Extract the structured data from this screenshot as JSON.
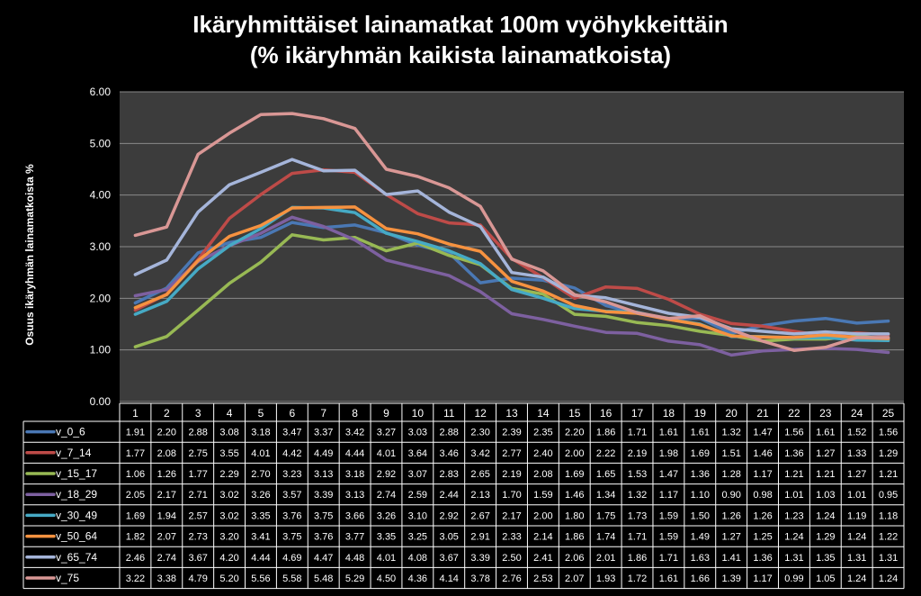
{
  "chart_data": {
    "type": "line",
    "title_lines": [
      "Ikäryhmittäiset lainamatkat 100m vyöhykkeittäin",
      "(% ikäryhmän kaikista lainamatkoista)"
    ],
    "ylabel": "Osuus ikäryhmän lainamatkoista  %",
    "ylim": [
      0,
      6
    ],
    "yticks": [
      "0.00",
      "1.00",
      "2.00",
      "3.00",
      "4.00",
      "5.00",
      "6.00"
    ],
    "grid": true,
    "legend": "data-table",
    "x": [
      "1",
      "2",
      "3",
      "4",
      "5",
      "6",
      "7",
      "8",
      "9",
      "10",
      "11",
      "12",
      "13",
      "14",
      "15",
      "16",
      "17",
      "18",
      "19",
      "20",
      "21",
      "22",
      "23",
      "24",
      "25"
    ],
    "series": [
      {
        "name": "v_0_6",
        "color": "#4a78b4",
        "values": [
          1.91,
          2.2,
          2.88,
          3.08,
          3.18,
          3.47,
          3.37,
          3.42,
          3.27,
          3.03,
          2.88,
          2.3,
          2.39,
          2.35,
          2.2,
          1.86,
          1.71,
          1.61,
          1.61,
          1.32,
          1.47,
          1.56,
          1.61,
          1.52,
          1.56
        ]
      },
      {
        "name": "v_7_14",
        "color": "#be4b48",
        "values": [
          1.77,
          2.08,
          2.75,
          3.55,
          4.01,
          4.42,
          4.49,
          4.44,
          4.01,
          3.64,
          3.46,
          3.42,
          2.77,
          2.4,
          2.0,
          2.22,
          2.19,
          1.98,
          1.69,
          1.51,
          1.46,
          1.36,
          1.27,
          1.33,
          1.29
        ]
      },
      {
        "name": "v_15_17",
        "color": "#98b954",
        "values": [
          1.06,
          1.26,
          1.77,
          2.29,
          2.7,
          3.23,
          3.13,
          3.18,
          2.92,
          3.07,
          2.83,
          2.65,
          2.19,
          2.08,
          1.69,
          1.65,
          1.53,
          1.47,
          1.36,
          1.28,
          1.17,
          1.21,
          1.21,
          1.27,
          1.21
        ]
      },
      {
        "name": "v_18_29",
        "color": "#7d60a0",
        "values": [
          2.05,
          2.17,
          2.71,
          3.02,
          3.26,
          3.57,
          3.39,
          3.13,
          2.74,
          2.59,
          2.44,
          2.13,
          1.7,
          1.59,
          1.46,
          1.34,
          1.32,
          1.17,
          1.1,
          0.9,
          0.98,
          1.01,
          1.03,
          1.01,
          0.95
        ]
      },
      {
        "name": "v_30_49",
        "color": "#46aac5",
        "values": [
          1.69,
          1.94,
          2.57,
          3.02,
          3.35,
          3.76,
          3.75,
          3.66,
          3.26,
          3.1,
          2.92,
          2.67,
          2.17,
          2.0,
          1.8,
          1.75,
          1.73,
          1.59,
          1.5,
          1.26,
          1.26,
          1.23,
          1.24,
          1.19,
          1.18
        ]
      },
      {
        "name": "v_50_64",
        "color": "#f69240",
        "values": [
          1.82,
          2.07,
          2.73,
          3.2,
          3.41,
          3.75,
          3.76,
          3.77,
          3.35,
          3.25,
          3.05,
          2.91,
          2.33,
          2.14,
          1.86,
          1.74,
          1.71,
          1.59,
          1.49,
          1.27,
          1.25,
          1.24,
          1.29,
          1.24,
          1.22
        ]
      },
      {
        "name": "v_65_74",
        "color": "#a5b5da",
        "values": [
          2.46,
          2.74,
          3.67,
          4.2,
          4.44,
          4.69,
          4.47,
          4.48,
          4.01,
          4.08,
          3.67,
          3.39,
          2.5,
          2.41,
          2.06,
          2.01,
          1.86,
          1.71,
          1.63,
          1.41,
          1.36,
          1.31,
          1.35,
          1.31,
          1.31
        ]
      },
      {
        "name": "v_75",
        "color": "#d99795",
        "values": [
          3.22,
          3.38,
          4.79,
          5.2,
          5.56,
          5.58,
          5.48,
          5.29,
          4.5,
          4.36,
          4.14,
          3.78,
          2.76,
          2.53,
          2.07,
          1.93,
          1.72,
          1.61,
          1.66,
          1.39,
          1.17,
          0.99,
          1.05,
          1.24,
          1.24
        ]
      }
    ]
  }
}
